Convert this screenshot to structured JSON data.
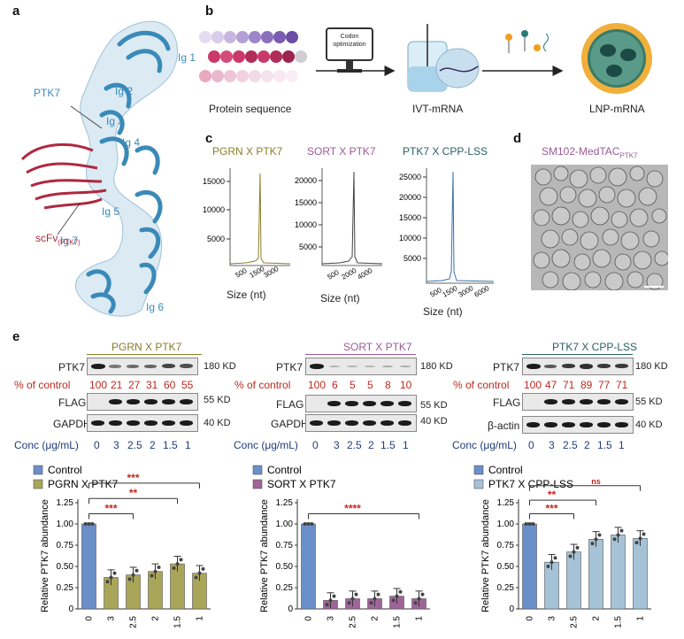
{
  "panels": {
    "a": "a",
    "b": "b",
    "c": "c",
    "d": "d",
    "e": "e"
  },
  "panel_a": {
    "domains": [
      "Ig 1",
      "Ig 2",
      "Ig 3",
      "Ig 4",
      "Ig 5",
      "Ig 6",
      "Ig 7"
    ],
    "ptk7_label": "PTK7",
    "scfv_label": "scFv",
    "scfv_sub": "(PTK7)"
  },
  "panel_b": {
    "protein_label": "Protein sequence",
    "codon_label": "Codon optimization",
    "ivt_label": "IVT-mRNA",
    "lnp_label": "LNP-mRNA"
  },
  "panel_c": {
    "titles": [
      "PGRN X PTK7",
      "SORT X PTK7",
      "PTK7 X CPP-LSS"
    ],
    "title_colors": [
      "#8a7d2a",
      "#9a5a96",
      "#2a5f63"
    ],
    "xlabel": "Size (nt)",
    "plots": [
      {
        "yticks": [
          "15000",
          "10000",
          "5000"
        ],
        "xticks": [
          "500",
          "1500",
          "3000"
        ],
        "color": "#8a7d2a"
      },
      {
        "yticks": [
          "20000",
          "15000",
          "10000",
          "5000"
        ],
        "xticks": [
          "500",
          "2000",
          "4000"
        ],
        "color": "#444"
      },
      {
        "yticks": [
          "25000",
          "20000",
          "15000",
          "10000",
          "5000"
        ],
        "xticks": [
          "500",
          "1500",
          "3000",
          "6000"
        ],
        "color": "#3a6fa8"
      }
    ]
  },
  "panel_d": {
    "title": "SM102-MedTAC",
    "sub": "PTK7"
  },
  "panel_e": {
    "blots": [
      {
        "title": "PGRN X PTK7",
        "title_color": "#8a7d2a",
        "rows": [
          "PTK7",
          "FLAG",
          "GAPDH"
        ],
        "pct": [
          "100",
          "21",
          "27",
          "31",
          "60",
          "55"
        ],
        "kd": [
          "180 KD",
          "55 KD",
          "40 KD"
        ]
      },
      {
        "title": "SORT X PTK7",
        "title_color": "#9a5a96",
        "rows": [
          "PTK7",
          "FLAG",
          "GAPDH"
        ],
        "pct": [
          "100",
          "6",
          "5",
          "5",
          "8",
          "10"
        ],
        "kd": [
          "180 KD",
          "55 KD",
          "40 KD"
        ]
      },
      {
        "title": "PTK7 X CPP-LSS",
        "title_color": "#2a5f63",
        "rows": [
          "PTK7",
          "FLAG",
          "β-actin"
        ],
        "pct": [
          "100",
          "47",
          "71",
          "89",
          "77",
          "71"
        ],
        "kd": [
          "180 KD",
          "55 KD",
          "40 KD"
        ]
      }
    ],
    "pct_label": "% of control",
    "conc_label": "Conc (μg/mL)",
    "conc_values": [
      "0",
      "3",
      "2.5",
      "2",
      "1.5",
      "1"
    ]
  },
  "chart_data": [
    {
      "type": "bar",
      "categories": [
        "0",
        "3",
        "2.5",
        "2",
        "1.5",
        "1"
      ],
      "series": [
        {
          "name": "Control",
          "values": [
            1.0,
            null,
            null,
            null,
            null,
            null
          ]
        },
        {
          "name": "PGRN X PTK7",
          "values": [
            null,
            0.37,
            0.4,
            0.44,
            0.53,
            0.42
          ]
        }
      ],
      "colors": [
        "#6b8fc9",
        "#a9a65a"
      ],
      "xlabel": "Conc (μg/mL)",
      "ylabel": "Relative PTK7 abundance",
      "ylim": [
        0,
        1.25
      ],
      "yticks": [
        "0",
        "0.25",
        "0.50",
        "0.75",
        "1.00",
        "1.25"
      ],
      "significance": [
        "***",
        "**",
        "***"
      ]
    },
    {
      "type": "bar",
      "categories": [
        "0",
        "3",
        "2.5",
        "2",
        "1.5",
        "1"
      ],
      "series": [
        {
          "name": "Control",
          "values": [
            1.0,
            null,
            null,
            null,
            null,
            null
          ]
        },
        {
          "name": "SORT X PTK7",
          "values": [
            null,
            0.1,
            0.12,
            0.12,
            0.15,
            0.12
          ]
        }
      ],
      "colors": [
        "#6b8fc9",
        "#a0649a"
      ],
      "xlabel": "Conc (μg/mL)",
      "ylabel": "Relative PTK7 abundance",
      "ylim": [
        0,
        1.25
      ],
      "yticks": [
        "0",
        "0.25",
        "0.50",
        "0.75",
        "1.00",
        "1.25"
      ],
      "significance": [
        "****"
      ]
    },
    {
      "type": "bar",
      "categories": [
        "0",
        "3",
        "2.5",
        "2",
        "1.5",
        "1"
      ],
      "series": [
        {
          "name": "Control",
          "values": [
            1.0,
            null,
            null,
            null,
            null,
            null
          ]
        },
        {
          "name": "PTK7 X CPP-LSS",
          "values": [
            null,
            0.55,
            0.67,
            0.82,
            0.87,
            0.83
          ]
        }
      ],
      "colors": [
        "#6b8fc9",
        "#a6c2d6"
      ],
      "xlabel": "Conc (μg/mL)",
      "ylabel": "Relative PTK7 abundance",
      "ylim": [
        0,
        1.25
      ],
      "yticks": [
        "0",
        "0.25",
        "0.50",
        "0.75",
        "1.00",
        "1.25"
      ],
      "significance": [
        "***",
        "**",
        "ns"
      ]
    }
  ]
}
